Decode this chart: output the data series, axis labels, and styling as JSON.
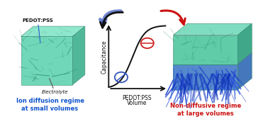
{
  "bg_color": "#ffffff",
  "left_label_line1": "Ion diffusion regime",
  "left_label_line2": "at small volumes",
  "right_label_line1": "Non-diffusive regime",
  "right_label_line2": "at large volumes",
  "pedot_label": "PEDOT:PSS",
  "electrolyte_label": "Electrolyte",
  "xlabel_line1": "PEDOT:PSS",
  "xlabel_line2": "Volume",
  "ylabel": "Capacitance",
  "left_label_color": "#1155cc",
  "right_label_color": "#cc1111",
  "blue_circle_color": "#3355bb",
  "red_circle_color": "#cc2222",
  "axis_color": "#111111",
  "curve_color": "#111111",
  "black_arrow_color": "#111111",
  "red_arrow_color": "#cc1111",
  "pedot_arrow_color": "#3366cc",
  "electrolyte_arrow_color": "#555555",
  "left_cube_front": "#70d8b8",
  "left_cube_top": "#90e8cc",
  "left_cube_right": "#50b898",
  "right_cube_front": "#60cca8",
  "right_cube_top": "#80dcc0",
  "right_cube_right": "#40a888",
  "right_cube_lower": "#44aacc",
  "spike_color1": "#2244cc",
  "spike_color2": "#3366dd"
}
